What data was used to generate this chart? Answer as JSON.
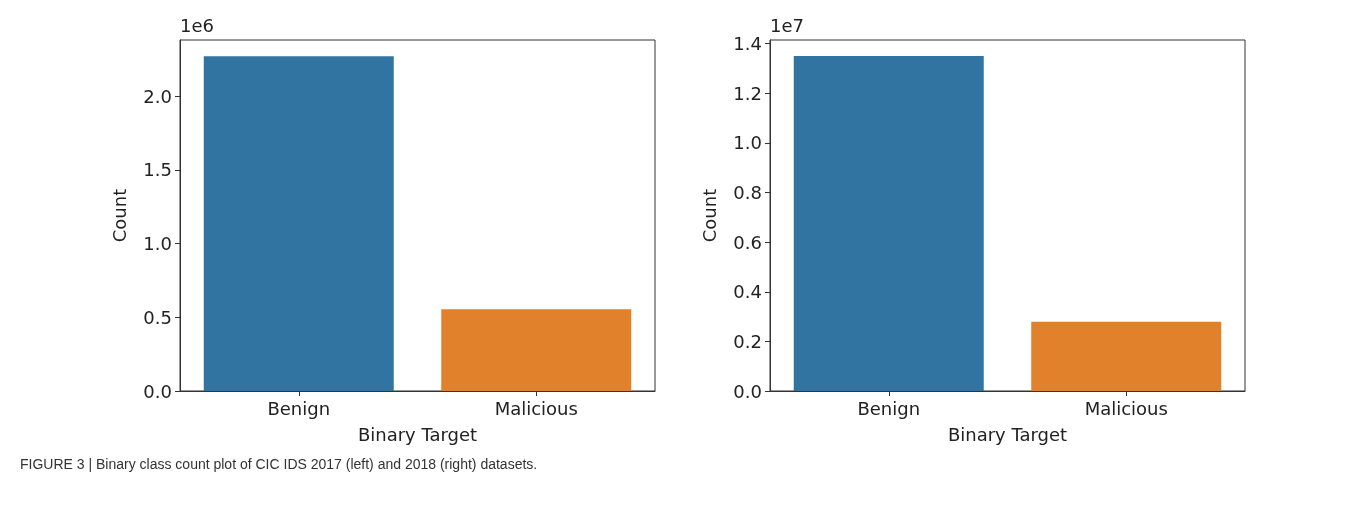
{
  "chart_data": [
    {
      "type": "bar",
      "xlabel": "Binary Target",
      "ylabel": "Count",
      "categories": [
        "Benign",
        "Malicious"
      ],
      "values": [
        2.27,
        0.555
      ],
      "colors": [
        "#3274a1",
        "#e1812c"
      ],
      "ylim": [
        0,
        2.38
      ],
      "yticks": [
        {
          "value": 0,
          "label": "0.0"
        },
        0.5,
        {
          "value": 1,
          "label": "1.0"
        },
        1.5,
        {
          "value": 2,
          "label": "2.0"
        }
      ],
      "annotations": [
        "1e6"
      ]
    },
    {
      "type": "bar",
      "xlabel": "Binary Target",
      "ylabel": "Count",
      "categories": [
        "Benign",
        "Malicious"
      ],
      "values": [
        1.351,
        0.279
      ],
      "colors": [
        "#3274a1",
        "#e1812c"
      ],
      "ylim": [
        0,
        1.415
      ],
      "yticks": [
        {
          "value": 0,
          "label": "0.0"
        },
        0.2,
        0.4,
        0.6,
        0.8,
        {
          "value": 1,
          "label": "1.0"
        },
        1.2,
        1.4
      ],
      "annotations": [
        "1e7",
        "FIGURE 3 | Binary class count plot of CIC IDS 2017 (left) and 2018 (right) datasets."
      ]
    }
  ]
}
